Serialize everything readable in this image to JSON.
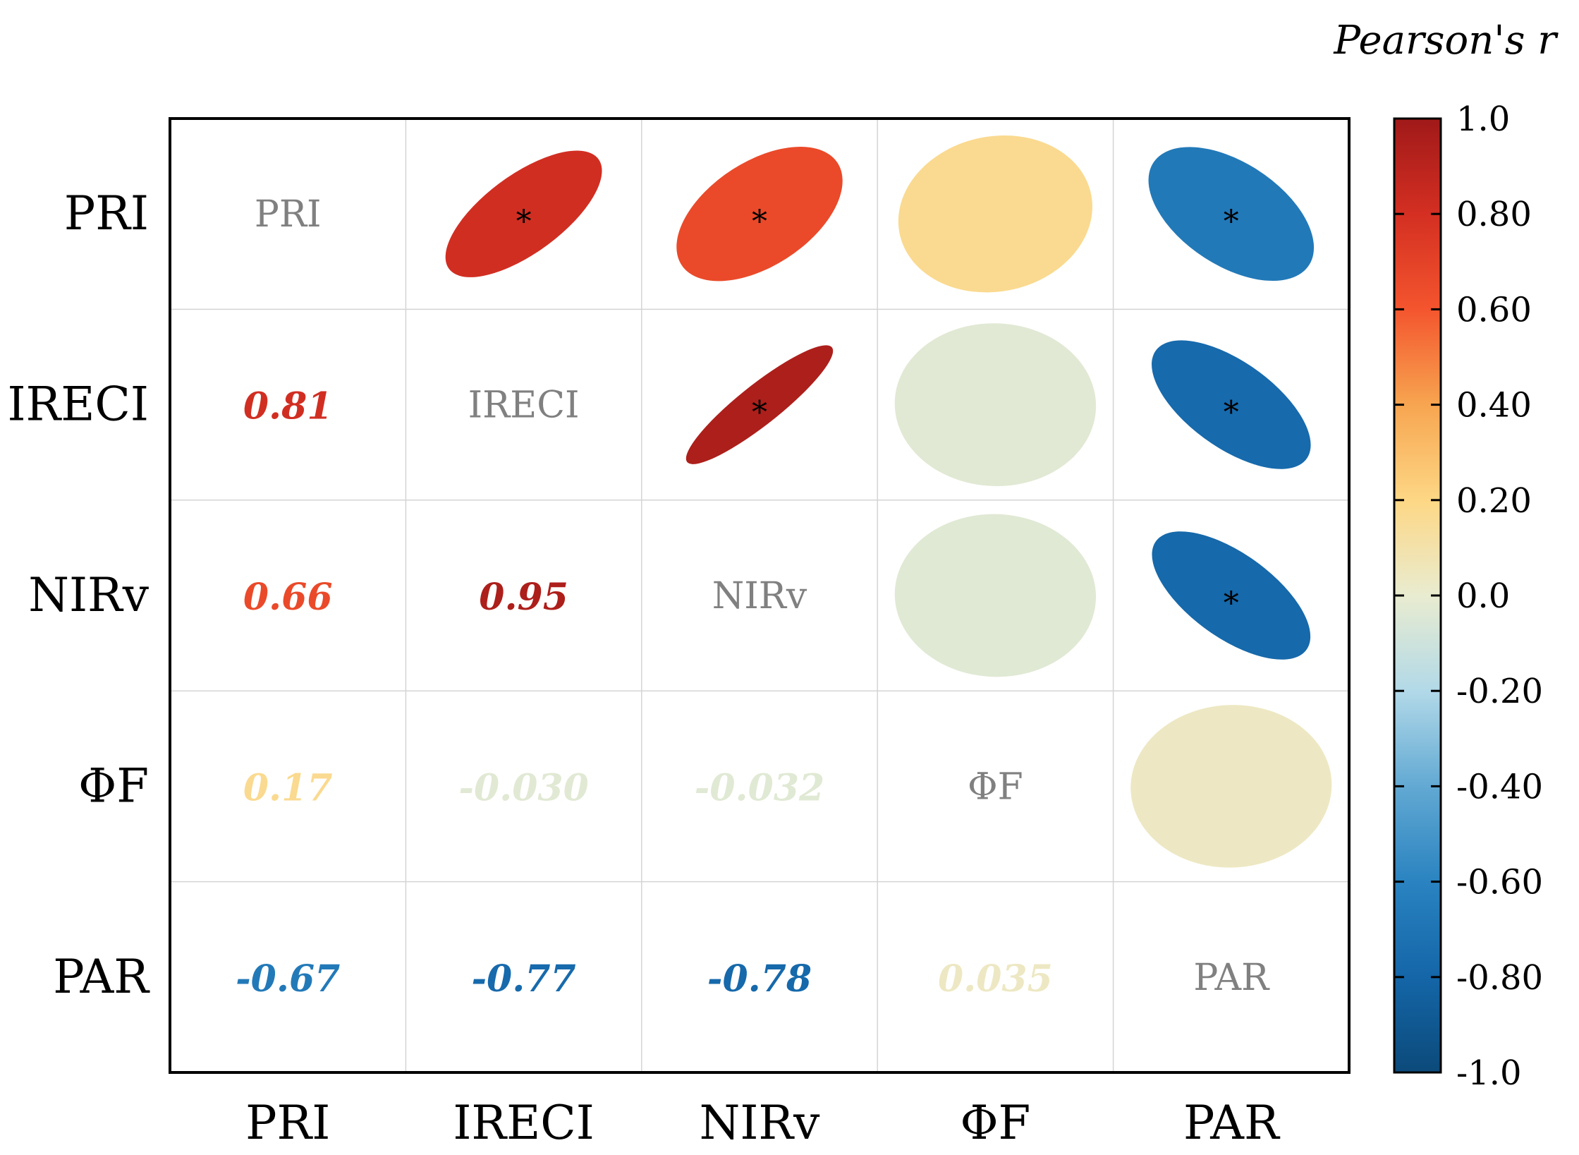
{
  "chart_data": {
    "type": "correlation-matrix",
    "variables": [
      "PRI",
      "IRECI",
      "NIRv",
      "ΦF",
      "PAR"
    ],
    "matrix": [
      [
        1.0,
        0.81,
        0.66,
        0.17,
        -0.67
      ],
      [
        0.81,
        1.0,
        0.95,
        -0.03,
        -0.77
      ],
      [
        0.66,
        0.95,
        1.0,
        -0.032,
        -0.78
      ],
      [
        0.17,
        -0.03,
        -0.032,
        1.0,
        0.035
      ],
      [
        -0.67,
        -0.77,
        -0.78,
        0.035,
        1.0
      ]
    ],
    "value_labels": [
      [
        "",
        "",
        "",
        "",
        ""
      ],
      [
        "0.81",
        "",
        "",
        "",
        ""
      ],
      [
        "0.66",
        "0.95",
        "",
        "",
        ""
      ],
      [
        "0.17",
        "-0.030",
        "-0.032",
        "",
        ""
      ],
      [
        "-0.67",
        "-0.77",
        "-0.78",
        "0.035",
        ""
      ]
    ],
    "significance": [
      [
        false,
        true,
        true,
        false,
        true
      ],
      [
        true,
        false,
        true,
        false,
        true
      ],
      [
        true,
        true,
        false,
        false,
        true
      ],
      [
        false,
        false,
        false,
        false,
        false
      ],
      [
        true,
        true,
        true,
        false,
        false
      ]
    ],
    "significance_marker": "*",
    "legend": {
      "title": "Pearson's r",
      "range": [
        -1.0,
        1.0
      ],
      "tick_values": [
        1.0,
        0.8,
        0.6,
        0.4,
        0.2,
        0.0,
        -0.2,
        -0.4,
        -0.6,
        -0.8,
        -1.0
      ],
      "tick_labels": [
        "1.0",
        "0.80",
        "0.60",
        "0.40",
        "0.20",
        "0.0",
        "-0.20",
        "-0.40",
        "-0.60",
        "-0.80",
        "-1.0"
      ],
      "placement": "right"
    },
    "colormap": {
      "stops": [
        -1.0,
        -0.8,
        -0.6,
        -0.4,
        -0.2,
        0.0,
        0.2,
        0.4,
        0.6,
        0.8,
        1.0
      ],
      "colors": [
        "#0c4a7a",
        "#1466a8",
        "#2a83c0",
        "#62a9d3",
        "#b2d9e8",
        "#e9ecd0",
        "#fdd785",
        "#f7a550",
        "#f4552e",
        "#d42f22",
        "#a01919"
      ]
    },
    "upper_triangle": "ellipses",
    "lower_triangle": "values",
    "diagonal": "variable names",
    "grid": true
  }
}
